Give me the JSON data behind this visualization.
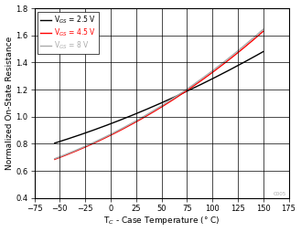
{
  "title": "",
  "xlabel": "T$_C$ - Case Temperature (° C)",
  "ylabel": "Normalized On-State Resistance",
  "xlim": [
    -75,
    175
  ],
  "ylim": [
    0.4,
    1.8
  ],
  "xticks": [
    -75,
    -50,
    -25,
    0,
    25,
    50,
    75,
    100,
    125,
    150,
    175
  ],
  "yticks": [
    0.4,
    0.6,
    0.8,
    1.0,
    1.2,
    1.4,
    1.6,
    1.8
  ],
  "lines": [
    {
      "label": "V$_{GS}$ = 2.5 V",
      "color": "#000000",
      "linewidth": 1.0,
      "x_start": -55,
      "x_end": 150,
      "y_start": 0.805,
      "y_end": 1.48,
      "exponent": 1.9
    },
    {
      "label": "V$_{GS}$ = 4.5 V",
      "color": "#ff0000",
      "linewidth": 1.0,
      "x_start": -55,
      "x_end": 150,
      "y_start": 0.685,
      "y_end": 1.63,
      "exponent": 2.3
    },
    {
      "label": "V$_{GS}$ = 8 V",
      "color": "#aaaaaa",
      "linewidth": 1.0,
      "x_start": -55,
      "x_end": 150,
      "y_start": 0.69,
      "y_end": 1.645,
      "exponent": 2.3
    }
  ],
  "legend_text_colors": [
    "#000000",
    "#ff0000",
    "#aaaaaa"
  ],
  "watermark": "C005",
  "background_color": "#ffffff",
  "grid_color": "#000000"
}
